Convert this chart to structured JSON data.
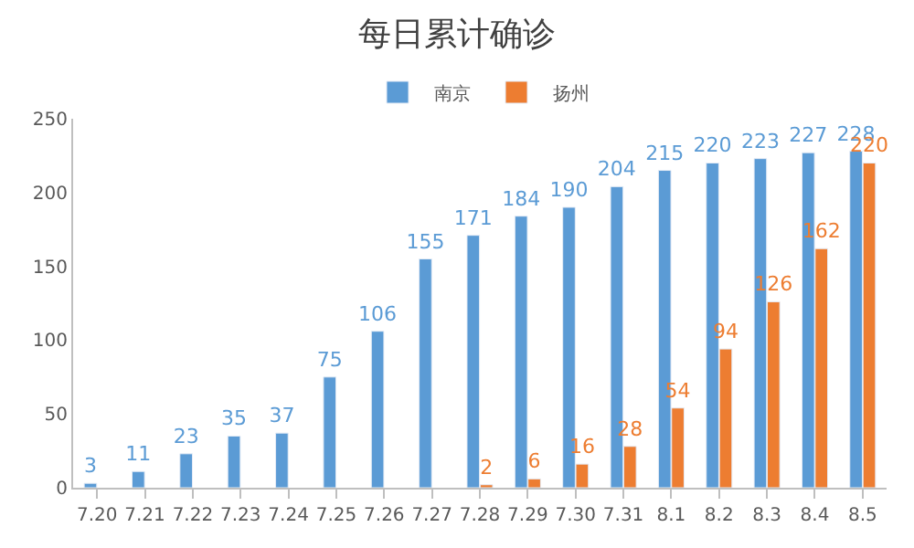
{
  "chart_data": {
    "type": "bar",
    "title": "每日累计确诊",
    "categories": [
      "7.20",
      "7.21",
      "7.22",
      "7.23",
      "7.24",
      "7.25",
      "7.26",
      "7.27",
      "7.28",
      "7.29",
      "7.30",
      "7.31",
      "8.1",
      "8.2",
      "8.3",
      "8.4",
      "8.5"
    ],
    "series": [
      {
        "name": "南京",
        "color": "#5b9bd5",
        "values": [
          3,
          11,
          23,
          35,
          37,
          75,
          106,
          155,
          171,
          184,
          190,
          204,
          215,
          220,
          223,
          227,
          228
        ]
      },
      {
        "name": "扬州",
        "color": "#ed7d31",
        "values": [
          null,
          null,
          null,
          null,
          null,
          null,
          null,
          null,
          2,
          6,
          16,
          28,
          54,
          94,
          126,
          162,
          220
        ]
      }
    ],
    "ylim": [
      0,
      250
    ],
    "yticks": [
      0,
      50,
      100,
      150,
      200,
      250
    ],
    "legend": "top",
    "data_labels": true
  }
}
